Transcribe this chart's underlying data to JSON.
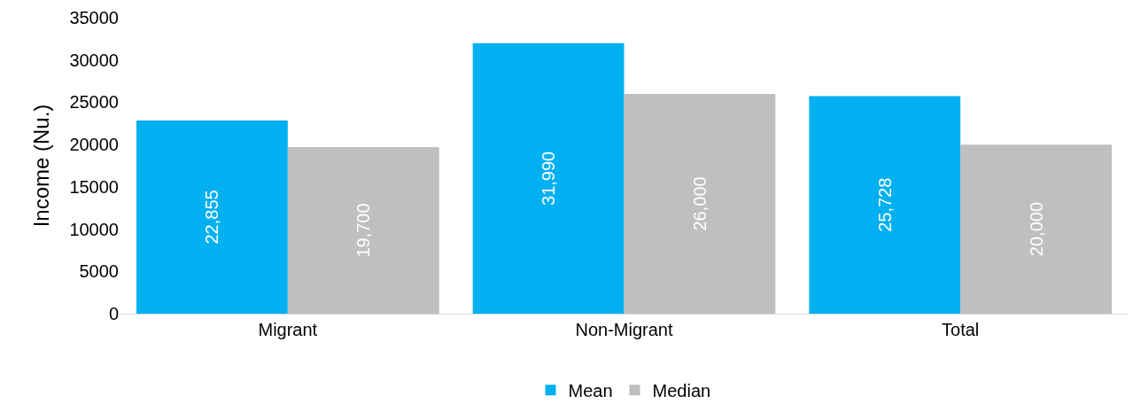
{
  "chart_data": {
    "type": "bar",
    "ylabel": "Income (Nu.)",
    "categories": [
      "Migrant",
      "Non-Migrant",
      "Total"
    ],
    "series": [
      {
        "name": "Mean",
        "color": "#00b0f0",
        "values": [
          22855,
          31990,
          25728
        ],
        "value_labels": [
          "22,855",
          "31,990",
          "25,728"
        ]
      },
      {
        "name": "Median",
        "color": "#bfbfbf",
        "values": [
          19700,
          26000,
          20000
        ],
        "value_labels": [
          "19,700",
          "26,000",
          "20,000"
        ]
      }
    ],
    "ylim": [
      0,
      35000
    ],
    "yticks": [
      0,
      5000,
      10000,
      15000,
      20000,
      25000,
      30000,
      35000
    ],
    "grid": false,
    "legend": "bottom"
  }
}
